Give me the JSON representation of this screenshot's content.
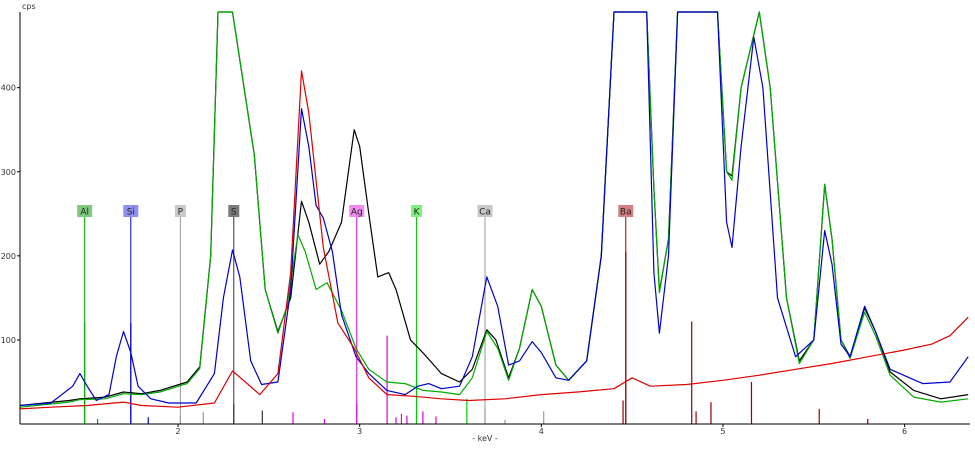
{
  "chart_data": {
    "type": "line",
    "xlabel": "- keV -",
    "ylabel": "cps",
    "xlim": [
      1.13,
      6.36
    ],
    "ylim": [
      0,
      490
    ],
    "x_ticks": [
      {
        "value": 2,
        "label": "2"
      },
      {
        "value": 3,
        "label": "3"
      },
      {
        "value": 4,
        "label": "4"
      },
      {
        "value": 5,
        "label": "5"
      },
      {
        "value": 6,
        "label": "6"
      }
    ],
    "y_ticks": [
      {
        "value": 100,
        "label": "100"
      },
      {
        "value": 200,
        "label": "200"
      },
      {
        "value": 300,
        "label": "300"
      },
      {
        "value": 400,
        "label": "400"
      }
    ],
    "series": [
      {
        "color": "#000000",
        "values": [
          [
            1.13,
            22
          ],
          [
            1.4,
            28
          ],
          [
            1.46,
            30
          ],
          [
            1.6,
            32
          ],
          [
            1.7,
            38
          ],
          [
            1.8,
            36
          ],
          [
            1.9,
            40
          ],
          [
            2.05,
            50
          ],
          [
            2.12,
            68
          ],
          [
            2.18,
            200
          ],
          [
            2.22,
            520
          ],
          [
            2.3,
            520
          ],
          [
            2.42,
            320
          ],
          [
            2.48,
            160
          ],
          [
            2.55,
            110
          ],
          [
            2.62,
            150
          ],
          [
            2.68,
            265
          ],
          [
            2.72,
            240
          ],
          [
            2.78,
            190
          ],
          [
            2.83,
            205
          ],
          [
            2.9,
            240
          ],
          [
            2.97,
            350
          ],
          [
            3.0,
            330
          ],
          [
            3.05,
            250
          ],
          [
            3.1,
            175
          ],
          [
            3.16,
            180
          ],
          [
            3.2,
            160
          ],
          [
            3.28,
            100
          ],
          [
            3.36,
            82
          ],
          [
            3.45,
            60
          ],
          [
            3.55,
            50
          ],
          [
            3.62,
            65
          ],
          [
            3.7,
            112
          ],
          [
            3.75,
            100
          ],
          [
            3.82,
            55
          ],
          [
            3.88,
            90
          ],
          [
            3.95,
            160
          ],
          [
            4.0,
            140
          ],
          [
            4.08,
            70
          ],
          [
            4.15,
            52
          ],
          [
            4.25,
            75
          ],
          [
            4.33,
            200
          ],
          [
            4.4,
            520
          ],
          [
            4.58,
            520
          ],
          [
            4.62,
            280
          ],
          [
            4.65,
            158
          ],
          [
            4.7,
            220
          ],
          [
            4.75,
            520
          ],
          [
            4.97,
            520
          ],
          [
            5.02,
            300
          ],
          [
            5.05,
            295
          ],
          [
            5.1,
            400
          ],
          [
            5.2,
            520
          ],
          [
            5.26,
            400
          ],
          [
            5.35,
            150
          ],
          [
            5.42,
            75
          ],
          [
            5.5,
            100
          ],
          [
            5.56,
            285
          ],
          [
            5.6,
            220
          ],
          [
            5.65,
            100
          ],
          [
            5.7,
            80
          ],
          [
            5.78,
            138
          ],
          [
            5.84,
            110
          ],
          [
            5.92,
            62
          ],
          [
            6.05,
            40
          ],
          [
            6.2,
            30
          ],
          [
            6.35,
            35
          ]
        ]
      },
      {
        "color": "#00aa00",
        "values": [
          [
            1.13,
            20
          ],
          [
            1.4,
            26
          ],
          [
            1.46,
            29
          ],
          [
            1.6,
            30
          ],
          [
            1.7,
            36
          ],
          [
            1.8,
            35
          ],
          [
            1.9,
            38
          ],
          [
            2.05,
            48
          ],
          [
            2.12,
            66
          ],
          [
            2.18,
            200
          ],
          [
            2.22,
            520
          ],
          [
            2.3,
            520
          ],
          [
            2.42,
            320
          ],
          [
            2.48,
            160
          ],
          [
            2.55,
            108
          ],
          [
            2.6,
            140
          ],
          [
            2.66,
            225
          ],
          [
            2.7,
            205
          ],
          [
            2.76,
            160
          ],
          [
            2.82,
            168
          ],
          [
            2.9,
            135
          ],
          [
            2.98,
            90
          ],
          [
            3.05,
            65
          ],
          [
            3.15,
            50
          ],
          [
            3.25,
            48
          ],
          [
            3.35,
            40
          ],
          [
            3.45,
            38
          ],
          [
            3.55,
            35
          ],
          [
            3.62,
            55
          ],
          [
            3.7,
            110
          ],
          [
            3.76,
            90
          ],
          [
            3.82,
            52
          ],
          [
            3.88,
            90
          ],
          [
            3.95,
            160
          ],
          [
            4.0,
            140
          ],
          [
            4.08,
            70
          ],
          [
            4.15,
            52
          ],
          [
            4.25,
            75
          ],
          [
            4.33,
            200
          ],
          [
            4.4,
            520
          ],
          [
            4.58,
            520
          ],
          [
            4.62,
            280
          ],
          [
            4.65,
            156
          ],
          [
            4.7,
            220
          ],
          [
            4.75,
            520
          ],
          [
            4.97,
            520
          ],
          [
            5.02,
            300
          ],
          [
            5.05,
            290
          ],
          [
            5.1,
            400
          ],
          [
            5.2,
            520
          ],
          [
            5.26,
            400
          ],
          [
            5.35,
            150
          ],
          [
            5.42,
            72
          ],
          [
            5.5,
            100
          ],
          [
            5.56,
            285
          ],
          [
            5.6,
            220
          ],
          [
            5.65,
            100
          ],
          [
            5.7,
            78
          ],
          [
            5.78,
            133
          ],
          [
            5.84,
            105
          ],
          [
            5.92,
            58
          ],
          [
            6.05,
            32
          ],
          [
            6.2,
            26
          ],
          [
            6.35,
            30
          ]
        ]
      },
      {
        "color": "#0000cc",
        "values": [
          [
            1.13,
            22
          ],
          [
            1.3,
            25
          ],
          [
            1.42,
            45
          ],
          [
            1.46,
            60
          ],
          [
            1.5,
            45
          ],
          [
            1.55,
            28
          ],
          [
            1.62,
            35
          ],
          [
            1.66,
            80
          ],
          [
            1.7,
            110
          ],
          [
            1.74,
            85
          ],
          [
            1.78,
            45
          ],
          [
            1.85,
            30
          ],
          [
            1.95,
            25
          ],
          [
            2.1,
            25
          ],
          [
            2.2,
            60
          ],
          [
            2.25,
            150
          ],
          [
            2.3,
            207
          ],
          [
            2.34,
            175
          ],
          [
            2.4,
            75
          ],
          [
            2.46,
            47
          ],
          [
            2.55,
            50
          ],
          [
            2.62,
            160
          ],
          [
            2.68,
            375
          ],
          [
            2.72,
            330
          ],
          [
            2.76,
            260
          ],
          [
            2.8,
            245
          ],
          [
            2.85,
            205
          ],
          [
            2.9,
            130
          ],
          [
            2.98,
            80
          ],
          [
            3.05,
            60
          ],
          [
            3.15,
            40
          ],
          [
            3.25,
            35
          ],
          [
            3.32,
            45
          ],
          [
            3.38,
            48
          ],
          [
            3.45,
            42
          ],
          [
            3.55,
            45
          ],
          [
            3.62,
            80
          ],
          [
            3.7,
            175
          ],
          [
            3.76,
            140
          ],
          [
            3.82,
            70
          ],
          [
            3.88,
            75
          ],
          [
            3.95,
            98
          ],
          [
            4.0,
            85
          ],
          [
            4.08,
            55
          ],
          [
            4.15,
            52
          ],
          [
            4.25,
            75
          ],
          [
            4.33,
            200
          ],
          [
            4.4,
            520
          ],
          [
            4.58,
            520
          ],
          [
            4.62,
            180
          ],
          [
            4.65,
            108
          ],
          [
            4.7,
            200
          ],
          [
            4.75,
            520
          ],
          [
            4.97,
            520
          ],
          [
            5.02,
            240
          ],
          [
            5.05,
            210
          ],
          [
            5.1,
            330
          ],
          [
            5.17,
            460
          ],
          [
            5.22,
            400
          ],
          [
            5.3,
            150
          ],
          [
            5.4,
            80
          ],
          [
            5.5,
            100
          ],
          [
            5.56,
            230
          ],
          [
            5.6,
            190
          ],
          [
            5.65,
            95
          ],
          [
            5.7,
            80
          ],
          [
            5.78,
            140
          ],
          [
            5.84,
            110
          ],
          [
            5.92,
            65
          ],
          [
            6.1,
            48
          ],
          [
            6.25,
            50
          ],
          [
            6.35,
            80
          ]
        ]
      },
      {
        "color": "#dd0000",
        "values": [
          [
            1.13,
            18
          ],
          [
            1.3,
            20
          ],
          [
            1.5,
            22
          ],
          [
            1.7,
            26
          ],
          [
            1.8,
            22
          ],
          [
            2.0,
            20
          ],
          [
            2.2,
            25
          ],
          [
            2.3,
            63
          ],
          [
            2.36,
            52
          ],
          [
            2.45,
            35
          ],
          [
            2.55,
            60
          ],
          [
            2.62,
            180
          ],
          [
            2.68,
            420
          ],
          [
            2.72,
            370
          ],
          [
            2.8,
            210
          ],
          [
            2.88,
            120
          ],
          [
            2.97,
            90
          ],
          [
            3.05,
            55
          ],
          [
            3.15,
            35
          ],
          [
            3.3,
            33
          ],
          [
            3.45,
            30
          ],
          [
            3.6,
            28
          ],
          [
            3.8,
            30
          ],
          [
            4.0,
            35
          ],
          [
            4.2,
            38
          ],
          [
            4.4,
            42
          ],
          [
            4.5,
            55
          ],
          [
            4.6,
            45
          ],
          [
            4.8,
            47
          ],
          [
            5.0,
            52
          ],
          [
            5.2,
            58
          ],
          [
            5.4,
            65
          ],
          [
            5.6,
            72
          ],
          [
            5.8,
            80
          ],
          [
            6.0,
            88
          ],
          [
            6.15,
            95
          ],
          [
            6.25,
            105
          ],
          [
            6.35,
            127
          ]
        ]
      }
    ],
    "element_markers": [
      {
        "label": "Al",
        "energy": 1.486,
        "box_color": "#7fc97f",
        "line_color": "#00aa00"
      },
      {
        "label": "Si",
        "energy": 1.74,
        "box_color": "#8f8ff0",
        "line_color": "#0000cc"
      },
      {
        "label": "P",
        "energy": 2.013,
        "box_color": "#c8c8c8",
        "line_color": "#999999"
      },
      {
        "label": "S",
        "energy": 2.307,
        "box_color": "#7a7a7a",
        "line_color": "#333333"
      },
      {
        "label": "Ag",
        "energy": 2.984,
        "box_color": "#f28af2",
        "line_color": "#dd00dd"
      },
      {
        "label": "K",
        "energy": 3.313,
        "box_color": "#80f080",
        "line_color": "#00cc00"
      },
      {
        "label": "Ca",
        "energy": 3.69,
        "box_color": "#c8c8c8",
        "line_color": "#999999"
      },
      {
        "label": "Ba",
        "energy": 4.465,
        "box_color": "#d48080",
        "line_color": "#990000"
      }
    ],
    "reference_lines": [
      {
        "energy": 1.486,
        "height": 120,
        "color": "#00aa00"
      },
      {
        "energy": 1.557,
        "height": 6,
        "color": "#00aa00"
      },
      {
        "energy": 1.74,
        "height": 120,
        "color": "#0000cc"
      },
      {
        "energy": 1.836,
        "height": 8,
        "color": "#0000cc"
      },
      {
        "energy": 2.013,
        "height": 10,
        "color": "#999999"
      },
      {
        "energy": 2.139,
        "height": 14,
        "color": "#999999"
      },
      {
        "energy": 2.307,
        "height": 24,
        "color": "#333333"
      },
      {
        "energy": 2.464,
        "height": 16,
        "color": "#333333"
      },
      {
        "energy": 2.633,
        "height": 14,
        "color": "#dd00dd"
      },
      {
        "energy": 2.806,
        "height": 6,
        "color": "#dd00dd"
      },
      {
        "energy": 2.984,
        "height": 24,
        "color": "#dd00dd"
      },
      {
        "energy": 3.151,
        "height": 105,
        "color": "#dd00dd"
      },
      {
        "energy": 3.2,
        "height": 8,
        "color": "#dd00dd"
      },
      {
        "energy": 3.23,
        "height": 12,
        "color": "#dd00dd"
      },
      {
        "energy": 3.26,
        "height": 10,
        "color": "#dd00dd"
      },
      {
        "energy": 3.313,
        "height": 80,
        "color": "#00cc00"
      },
      {
        "energy": 3.348,
        "height": 15,
        "color": "#dd00dd"
      },
      {
        "energy": 3.42,
        "height": 9,
        "color": "#dd00dd"
      },
      {
        "energy": 3.59,
        "height": 30,
        "color": "#00cc00"
      },
      {
        "energy": 3.69,
        "height": 20,
        "color": "#999999"
      },
      {
        "energy": 3.8,
        "height": 5,
        "color": "#999999"
      },
      {
        "energy": 4.013,
        "height": 15,
        "color": "#999999"
      },
      {
        "energy": 4.45,
        "height": 28,
        "color": "#990000"
      },
      {
        "energy": 4.465,
        "height": 205,
        "color": "#990000"
      },
      {
        "energy": 4.828,
        "height": 122,
        "color": "#990000"
      },
      {
        "energy": 4.852,
        "height": 15,
        "color": "#990000"
      },
      {
        "energy": 4.934,
        "height": 26,
        "color": "#990000"
      },
      {
        "energy": 5.157,
        "height": 50,
        "color": "#990000"
      },
      {
        "energy": 5.53,
        "height": 18,
        "color": "#990000"
      },
      {
        "energy": 5.797,
        "height": 6,
        "color": "#990000"
      }
    ]
  }
}
